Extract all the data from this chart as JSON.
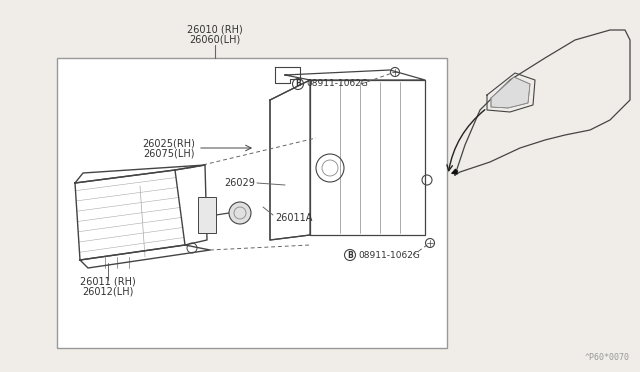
{
  "bg_color": "#f0ede8",
  "box_color": "#ffffff",
  "line_color": "#444444",
  "text_color": "#333333",
  "watermark": "^P60*0070",
  "labels": {
    "top_label_line1": "26010 (RH)",
    "top_label_line2": "26060(LH)",
    "bolt_label": "08911-1062G",
    "housing_label_line1": "26025(RH)",
    "housing_label_line2": "26075(LH)",
    "lamp_label": "26029",
    "socket_label": "26011A",
    "lens_label_line1": "26011 (RH)",
    "lens_label_line2": "26012(LH)"
  }
}
